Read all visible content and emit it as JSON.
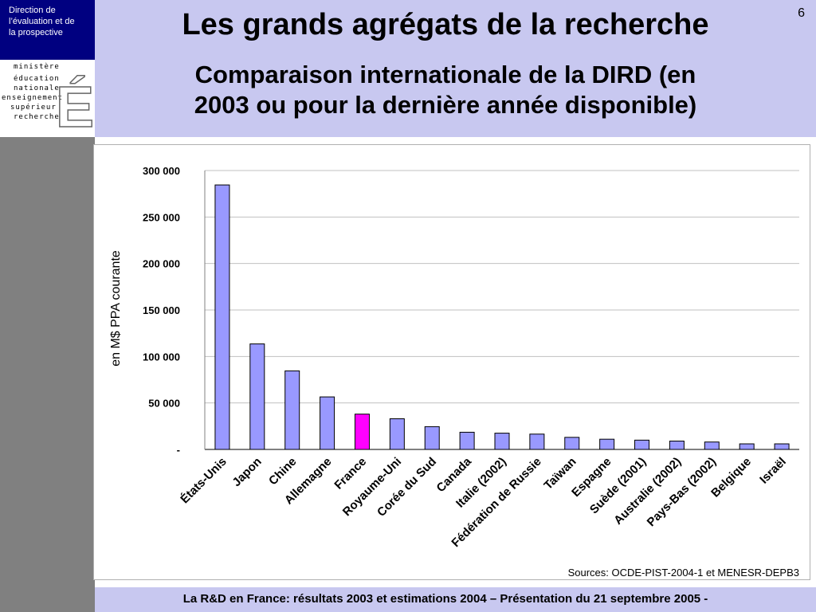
{
  "sidebar": {
    "direction_lines": [
      "Direction de",
      "l’évaluation  et de",
      "la prospective"
    ],
    "logo_lines": [
      "ministère",
      "éducation",
      "nationale",
      "enseignement",
      "supérieur",
      "recherche"
    ],
    "logo_letter": "É"
  },
  "header": {
    "title": "Les grands agrégats de la recherche",
    "subtitle_line1": "Comparaison internationale de la DIRD (en",
    "subtitle_line2": "2003 ou pour la dernière année disponible)",
    "page_number": "6"
  },
  "footer": {
    "text": "La R&D en France: résultats 2003 et estimations 2004 – Présentation du 21 septembre 2005 -"
  },
  "colors": {
    "bar": "#9999ff",
    "highlight": "#ff00ff",
    "header_bg": "#c8c8f0",
    "direction_bg": "#000080"
  },
  "chart_data": {
    "type": "bar",
    "categories": [
      "États-Unis",
      "Japon",
      "Chine",
      "Allemagne",
      "France",
      "Royaume-Uni",
      "Corée du Sud",
      "Canada",
      "Italie (2002)",
      "Fédération de Russie",
      "Taïwan",
      "Espagne",
      "Suède (2001)",
      "Australie (2002)",
      "Pays-Bas (2002)",
      "Belgique",
      "Israël"
    ],
    "values": [
      284500,
      113500,
      84500,
      56500,
      38000,
      33000,
      24500,
      18500,
      17500,
      16500,
      13000,
      11000,
      10000,
      9000,
      8000,
      6000,
      6000
    ],
    "highlight_index": 4,
    "ylabel": "en M$ PPA courante",
    "ylim": [
      0,
      300000
    ],
    "yticks": [
      0,
      50000,
      100000,
      150000,
      200000,
      250000,
      300000
    ],
    "ytick_labels": [
      "-",
      "50 000",
      "100 000",
      "150 000",
      "200 000",
      "250 000",
      "300 000"
    ],
    "grid": true,
    "source": "Sources: OCDE-PIST-2004-1 et MENESR-DEPB3"
  }
}
